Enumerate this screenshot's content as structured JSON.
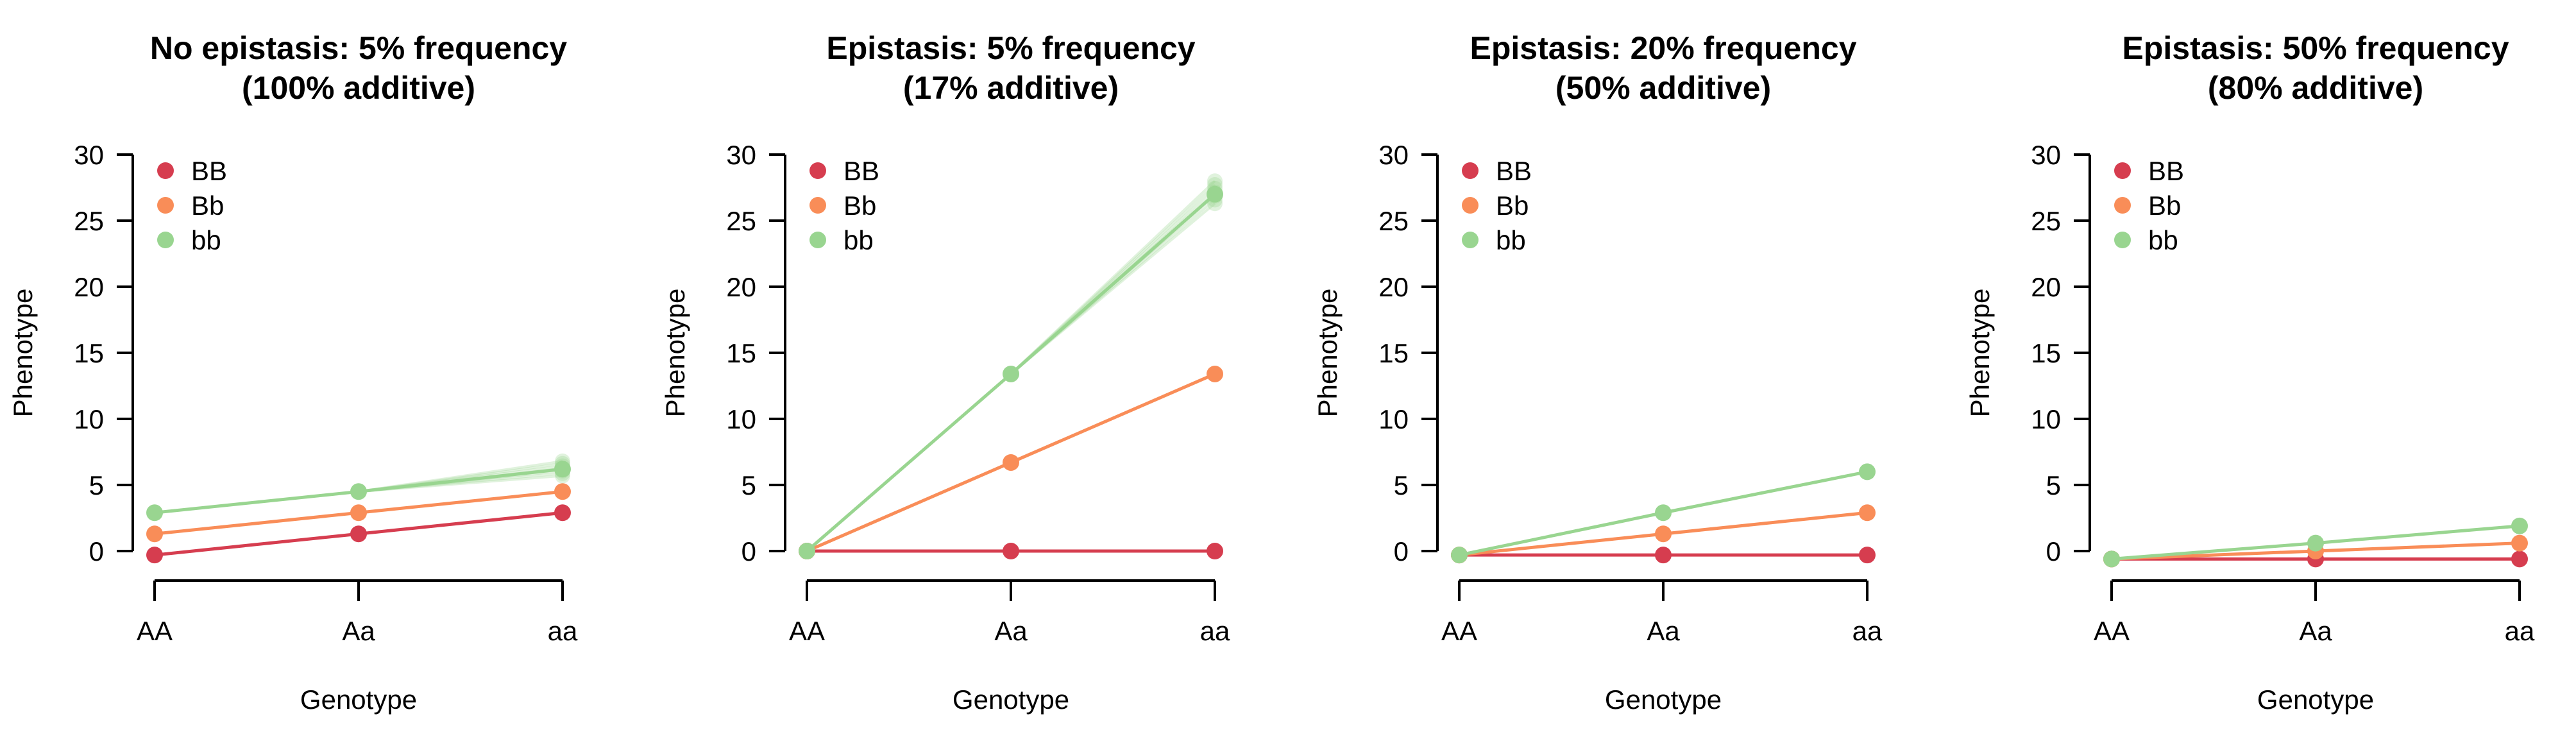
{
  "colors": {
    "BB": "#d63d4f",
    "Bb": "#f98d58",
    "bb": "#99d590"
  },
  "chart_data": [
    {
      "type": "line",
      "title": [
        "No epistasis: 5% frequency",
        "(100% additive)"
      ],
      "xlabel": "Genotype",
      "ylabel": "Phenotype",
      "categories": [
        "AA",
        "Aa",
        "aa"
      ],
      "yticks": [
        0,
        5,
        10,
        15,
        20,
        25,
        30
      ],
      "ylim": [
        0,
        30
      ],
      "legend": [
        "BB",
        "Bb",
        "bb"
      ],
      "legend_position": "top-left",
      "series": [
        {
          "name": "BB",
          "values": [
            -0.3,
            1.3,
            2.9
          ]
        },
        {
          "name": "Bb",
          "values": [
            1.3,
            2.9,
            4.5
          ]
        },
        {
          "name": "bb",
          "values": [
            2.9,
            4.5,
            6.2
          ],
          "aa_spread": [
            5.7,
            6.8
          ]
        }
      ]
    },
    {
      "type": "line",
      "title": [
        "Epistasis: 5% frequency",
        "(17% additive)"
      ],
      "xlabel": "Genotype",
      "ylabel": "Phenotype",
      "categories": [
        "AA",
        "Aa",
        "aa"
      ],
      "yticks": [
        0,
        5,
        10,
        15,
        20,
        25,
        30
      ],
      "ylim": [
        0,
        30
      ],
      "legend": [
        "BB",
        "Bb",
        "bb"
      ],
      "legend_position": "top-left",
      "series": [
        {
          "name": "BB",
          "values": [
            0,
            0,
            0
          ]
        },
        {
          "name": "Bb",
          "values": [
            0,
            6.7,
            13.4
          ]
        },
        {
          "name": "bb",
          "values": [
            0,
            13.4,
            27.0
          ],
          "aa_spread": [
            26.3,
            28.0
          ]
        }
      ]
    },
    {
      "type": "line",
      "title": [
        "Epistasis: 20% frequency",
        "(50% additive)"
      ],
      "xlabel": "Genotype",
      "ylabel": "Phenotype",
      "categories": [
        "AA",
        "Aa",
        "aa"
      ],
      "yticks": [
        0,
        5,
        10,
        15,
        20,
        25,
        30
      ],
      "ylim": [
        0,
        30
      ],
      "legend": [
        "BB",
        "Bb",
        "bb"
      ],
      "legend_position": "top-left",
      "series": [
        {
          "name": "BB",
          "values": [
            -0.3,
            -0.3,
            -0.3
          ]
        },
        {
          "name": "Bb",
          "values": [
            -0.3,
            1.3,
            2.9
          ]
        },
        {
          "name": "bb",
          "values": [
            -0.3,
            2.9,
            6.0
          ]
        }
      ]
    },
    {
      "type": "line",
      "title": [
        "Epistasis: 50% frequency",
        "(80% additive)"
      ],
      "xlabel": "Genotype",
      "ylabel": "Phenotype",
      "categories": [
        "AA",
        "Aa",
        "aa"
      ],
      "yticks": [
        0,
        5,
        10,
        15,
        20,
        25,
        30
      ],
      "ylim": [
        0,
        30
      ],
      "legend": [
        "BB",
        "Bb",
        "bb"
      ],
      "legend_position": "top-left",
      "series": [
        {
          "name": "BB",
          "values": [
            -0.6,
            -0.6,
            -0.6
          ]
        },
        {
          "name": "Bb",
          "values": [
            -0.6,
            0.0,
            0.6
          ]
        },
        {
          "name": "bb",
          "values": [
            -0.6,
            0.6,
            1.9
          ]
        }
      ]
    }
  ]
}
